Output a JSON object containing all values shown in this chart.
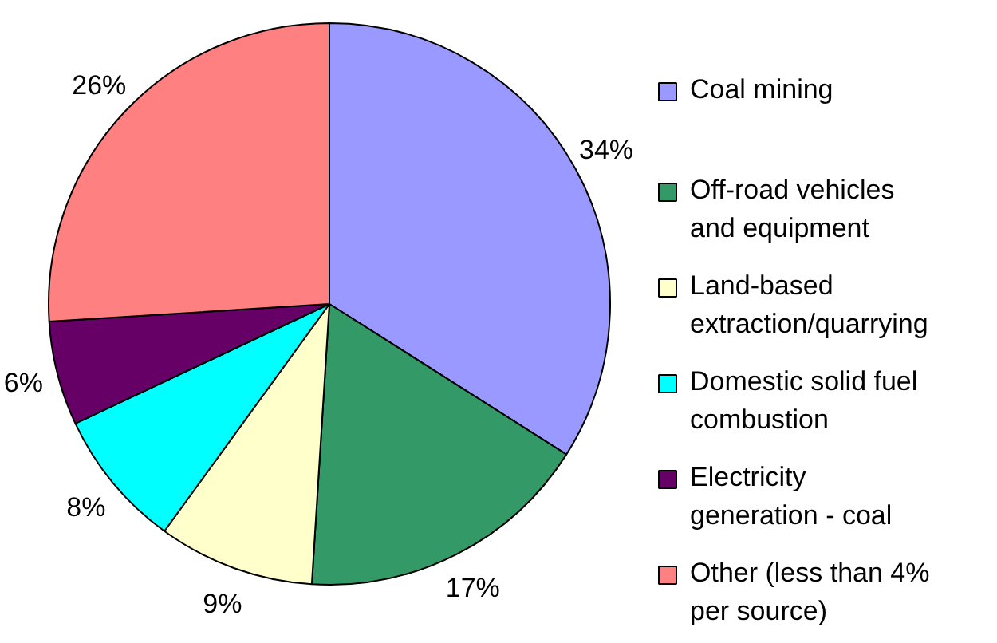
{
  "chart_data": {
    "type": "pie",
    "categories": [
      "Coal mining",
      "Off-road vehicles and equipment",
      "Land-based extraction/quarrying",
      "Domestic solid fuel combustion",
      "Electricity generation - coal",
      "Other (less than 4% per source)"
    ],
    "values": [
      34,
      17,
      9,
      8,
      6,
      26
    ],
    "value_labels": [
      "34%",
      "17%",
      "9%",
      "8%",
      "6%",
      "26%"
    ],
    "colors": [
      "#9999ff",
      "#339966",
      "#ffffcc",
      "#00ffff",
      "#660066",
      "#ff8080"
    ],
    "legend": "right"
  }
}
